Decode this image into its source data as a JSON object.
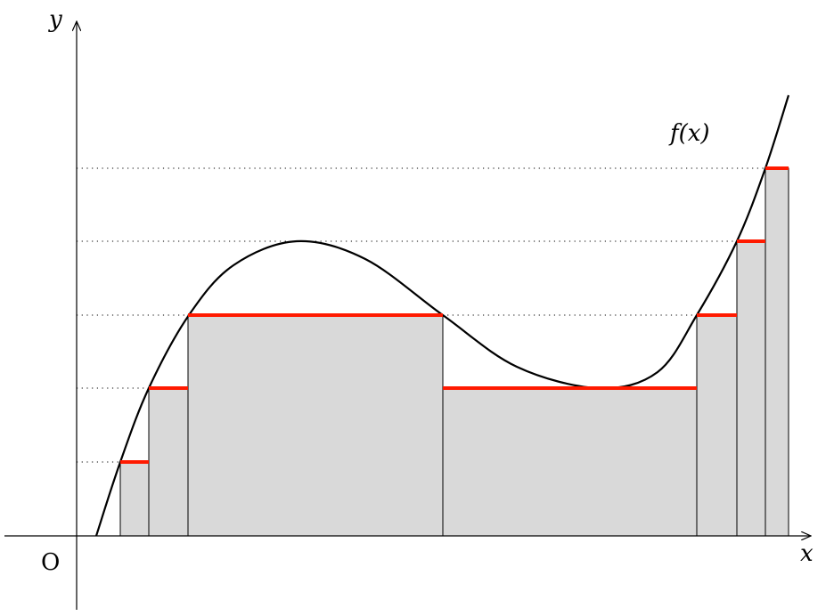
{
  "labels": {
    "y_axis": "y",
    "x_axis": "x",
    "origin": "O",
    "function": "f(x)"
  },
  "colors": {
    "fill": "#d9d9d9",
    "level_line": "#ff1a00",
    "curve": "#000000"
  }
}
